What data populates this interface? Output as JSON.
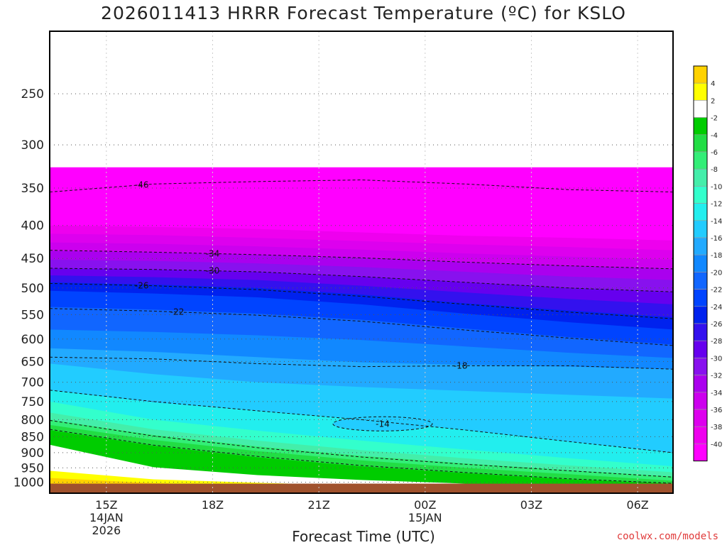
{
  "title": "2026011413 HRRR Forecast Temperature (ºC) for KSLO",
  "credit": "coolwx.com/models",
  "chart_data": {
    "type": "heatmap",
    "xlabel": "Forecast Time (UTC)",
    "ylabel": "",
    "x_axis": {
      "range": [
        13.4,
        31.0
      ],
      "ticks": [
        {
          "value": 15,
          "label": "15Z",
          "sub": [
            "14JAN",
            "2026"
          ]
        },
        {
          "value": 18,
          "label": "18Z",
          "sub": []
        },
        {
          "value": 21,
          "label": "21Z",
          "sub": []
        },
        {
          "value": 24,
          "label": "00Z",
          "sub": [
            "15JAN"
          ]
        },
        {
          "value": 27,
          "label": "03Z",
          "sub": []
        },
        {
          "value": 30,
          "label": "06Z",
          "sub": []
        }
      ]
    },
    "y_axis": {
      "range": [
        1040,
        200
      ],
      "log_scale": true,
      "ticks": [
        250,
        300,
        350,
        400,
        450,
        500,
        550,
        600,
        650,
        700,
        750,
        800,
        850,
        900,
        950,
        1000
      ]
    },
    "grid": true,
    "ground_below_hpa": 1000,
    "colorbar": {
      "placement": "right",
      "levels": [
        {
          "label": "",
          "color": "#ffd200"
        },
        {
          "label": "4",
          "color": "#ffff00"
        },
        {
          "label": "2",
          "color": "#ffffff"
        },
        {
          "label": "-2",
          "color": "#00cc00"
        },
        {
          "label": "-4",
          "color": "#22dd44"
        },
        {
          "label": "-6",
          "color": "#33ee77"
        },
        {
          "label": "-8",
          "color": "#44eeaa"
        },
        {
          "label": "-10",
          "color": "#33ffcc"
        },
        {
          "label": "-12",
          "color": "#22eeee"
        },
        {
          "label": "-14",
          "color": "#22ccff"
        },
        {
          "label": "-16",
          "color": "#22aaff"
        },
        {
          "label": "-18",
          "color": "#1188ff"
        },
        {
          "label": "-20",
          "color": "#1166ff"
        },
        {
          "label": "-22",
          "color": "#0044ff"
        },
        {
          "label": "-24",
          "color": "#0022ee"
        },
        {
          "label": "-26",
          "color": "#3311ee"
        },
        {
          "label": "-28",
          "color": "#6600ee"
        },
        {
          "label": "-30",
          "color": "#8811ee"
        },
        {
          "label": "-32",
          "color": "#aa00ee"
        },
        {
          "label": "-34",
          "color": "#cc00ee"
        },
        {
          "label": "-36",
          "color": "#dd00ee"
        },
        {
          "label": "-38",
          "color": "#ee00ee"
        },
        {
          "label": "-40",
          "color": "#ff00ff"
        }
      ]
    },
    "bands": [
      {
        "top": [
          325,
          325,
          325,
          325,
          325,
          325,
          325
        ],
        "color": "#ff00ff"
      },
      {
        "top": [
          400,
          402,
          405,
          410,
          415,
          418,
          422
        ],
        "color": "#ee00ee"
      },
      {
        "top": [
          412,
          414,
          418,
          423,
          428,
          432,
          437
        ],
        "color": "#dd00ee"
      },
      {
        "top": [
          425,
          427,
          431,
          436,
          442,
          447,
          452
        ],
        "color": "#cc00ee"
      },
      {
        "top": [
          438,
          440,
          444,
          449,
          456,
          462,
          467
        ],
        "color": "#aa00ee"
      },
      {
        "top": [
          452,
          454,
          458,
          464,
          472,
          480,
          486
        ],
        "color": "#8811ee"
      },
      {
        "top": [
          466,
          468,
          472,
          480,
          490,
          500,
          507
        ],
        "color": "#6600ee"
      },
      {
        "top": [
          478,
          481,
          486,
          496,
          508,
          520,
          530
        ],
        "color": "#3311ee"
      },
      {
        "top": [
          490,
          494,
          500,
          512,
          528,
          542,
          555
        ],
        "color": "#0022ee"
      },
      {
        "top": [
          505,
          510,
          517,
          530,
          548,
          565,
          580
        ],
        "color": "#0044ff"
      },
      {
        "top": [
          535,
          540,
          548,
          560,
          578,
          596,
          612
        ],
        "color": "#1166ff"
      },
      {
        "top": [
          580,
          585,
          592,
          602,
          616,
          630,
          642
        ],
        "color": "#1188ff"
      },
      {
        "top": [
          620,
          628,
          640,
          652,
          658,
          662,
          668
        ],
        "color": "#22aaff"
      },
      {
        "top": [
          655,
          680,
          700,
          712,
          722,
          732,
          742
        ],
        "color": "#22ccff"
      },
      {
        "top": [
          720,
          752,
          775,
          800,
          830,
          865,
          900
        ],
        "color": "#22eeee"
      },
      {
        "top": [
          750,
          800,
          832,
          862,
          890,
          918,
          945
        ],
        "color": "#33ffcc"
      },
      {
        "top": [
          780,
          828,
          862,
          892,
          918,
          942,
          965
        ],
        "color": "#44eeaa"
      },
      {
        "top": [
          800,
          845,
          880,
          910,
          935,
          958,
          980
        ],
        "color": "#33ee77"
      },
      {
        "top": [
          815,
          860,
          895,
          925,
          950,
          972,
          995
        ],
        "color": "#22dd44"
      },
      {
        "top": [
          830,
          878,
          915,
          945,
          968,
          990,
          1005
        ],
        "color": "#00cc00"
      },
      {
        "top": [
          875,
          948,
          975,
          992,
          1005,
          1012,
          1020
        ],
        "color": "#ffffff"
      },
      {
        "top": [
          960,
          990,
          1002,
          1012,
          1018,
          1022,
          1025
        ],
        "color": "#ffff00"
      },
      {
        "top": [
          985,
          1003,
          1013,
          1020,
          1024,
          1027,
          1030
        ],
        "color": "#ffd200"
      }
    ],
    "contours": [
      {
        "label": "-46",
        "values": [
          355,
          345,
          342,
          340,
          345,
          352,
          355
        ],
        "label_x": 16
      },
      {
        "label": "-34",
        "values": [
          437,
          440,
          444,
          449,
          456,
          462,
          467
        ],
        "label_x": 18
      },
      {
        "label": "-30",
        "values": [
          466,
          468,
          472,
          480,
          490,
          500,
          507
        ],
        "label_x": 18
      },
      {
        "label": "-26",
        "values": [
          492,
          496,
          503,
          515,
          530,
          545,
          558
        ],
        "label_x": 16
      },
      {
        "label": "-22",
        "values": [
          538,
          543,
          551,
          563,
          581,
          598,
          614
        ],
        "label_x": 17
      },
      {
        "label": "-18",
        "values": [
          640,
          644,
          655,
          662,
          660,
          660,
          668
        ],
        "label_x": 25
      },
      {
        "label": "",
        "values": [
          720,
          750,
          775,
          800,
          830,
          865,
          900
        ],
        "label_x": 0
      },
      {
        "label": "",
        "values": [
          802,
          848,
          884,
          914,
          938,
          960,
          982
        ],
        "label_x": 0
      },
      {
        "label": "",
        "values": [
          828,
          876,
          912,
          942,
          966,
          988,
          1004
        ],
        "label_x": 0
      }
    ]
  }
}
